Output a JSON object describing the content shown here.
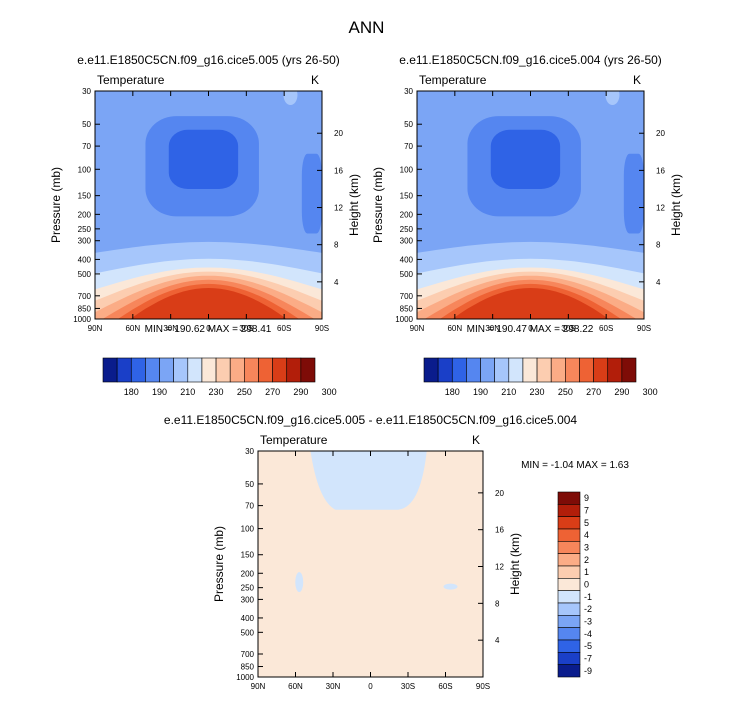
{
  "page_title": "ANN",
  "chart_data": [
    {
      "type": "heatmap",
      "title": "e.e11.E1850C5CN.f09_g16.cice5.005 (yrs 26-50)",
      "variable_label": "Temperature",
      "units": "K",
      "ylabel": "Pressure (mb)",
      "ylabel_right": "Height (km)",
      "x_ticks": [
        "90N",
        "60N",
        "30N",
        "0",
        "30S",
        "60S",
        "90S"
      ],
      "y_ticks": [
        "30",
        "50",
        "70",
        "100",
        "150",
        "200",
        "250",
        "300",
        "400",
        "500",
        "700",
        "850",
        "1000"
      ],
      "y_ticks_right": [
        "20",
        "16",
        "12",
        "8",
        "4"
      ],
      "stats": "MIN = 190.62  MAX = 298.41",
      "colorbar_labels": [
        "180",
        "190",
        "210",
        "230",
        "250",
        "270",
        "290",
        "300"
      ],
      "colorbar_colors": [
        "#0a1c8c",
        "#1a3fc8",
        "#2f63e6",
        "#5586f0",
        "#7ba5f5",
        "#a6c6fb",
        "#d2e5fc",
        "#fbe8d8",
        "#fccdb0",
        "#fbac86",
        "#f7865b",
        "#ee6234",
        "#d93d17",
        "#b21e0a",
        "#7e0c07"
      ],
      "levels": [
        {
          "ztop": 0.0,
          "dz": 0.0,
          "color": "#7ba5f5"
        },
        {
          "ztop": 0.68,
          "dz": 0.03,
          "color": "#a6c6fb"
        },
        {
          "ztop": 0.76,
          "dz": 0.04,
          "color": "#d2e5fc"
        },
        {
          "ztop": 0.81,
          "dz": 0.06,
          "color": "#fbe8d8"
        },
        {
          "ztop": 0.84,
          "dz": 0.08,
          "color": "#fccdb0"
        },
        {
          "ztop": 0.87,
          "dz": 0.1,
          "color": "#fbac86"
        },
        {
          "ztop": 0.9,
          "dz": 0.12,
          "color": "#f7865b"
        },
        {
          "ztop": 0.93,
          "dz": 0.14,
          "color": "#ee6234"
        },
        {
          "ztop": 0.96,
          "dz": 0.16,
          "color": "#d93d17"
        }
      ],
      "upper_blobs": [
        {
          "color": "#5586f0",
          "lat": 5,
          "z": 0.33,
          "wlat": 90,
          "hz": 0.44
        },
        {
          "color": "#2f63e6",
          "lat": 4,
          "z": 0.3,
          "wlat": 55,
          "hz": 0.26
        },
        {
          "color": "#5586f0",
          "lat": -82,
          "z": 0.45,
          "wlat": 16,
          "hz": 0.35
        }
      ]
    },
    {
      "type": "heatmap",
      "title": "e.e11.E1850C5CN.f09_g16.cice5.004 (yrs 26-50)",
      "variable_label": "Temperature",
      "units": "K",
      "ylabel": "Pressure (mb)",
      "ylabel_right": "Height (km)",
      "x_ticks": [
        "90N",
        "60N",
        "30N",
        "0",
        "30S",
        "60S",
        "90S"
      ],
      "y_ticks": [
        "30",
        "50",
        "70",
        "100",
        "150",
        "200",
        "250",
        "300",
        "400",
        "500",
        "700",
        "850",
        "1000"
      ],
      "y_ticks_right": [
        "20",
        "16",
        "12",
        "8",
        "4"
      ],
      "stats": "MIN = 190.47  MAX = 298.22",
      "colorbar_labels": [
        "180",
        "190",
        "210",
        "230",
        "250",
        "270",
        "290",
        "300"
      ],
      "colorbar_colors": [
        "#0a1c8c",
        "#1a3fc8",
        "#2f63e6",
        "#5586f0",
        "#7ba5f5",
        "#a6c6fb",
        "#d2e5fc",
        "#fbe8d8",
        "#fccdb0",
        "#fbac86",
        "#f7865b",
        "#ee6234",
        "#d93d17",
        "#b21e0a",
        "#7e0c07"
      ],
      "levels": [
        {
          "ztop": 0.0,
          "dz": 0.0,
          "color": "#7ba5f5"
        },
        {
          "ztop": 0.68,
          "dz": 0.03,
          "color": "#a6c6fb"
        },
        {
          "ztop": 0.76,
          "dz": 0.04,
          "color": "#d2e5fc"
        },
        {
          "ztop": 0.81,
          "dz": 0.06,
          "color": "#fbe8d8"
        },
        {
          "ztop": 0.84,
          "dz": 0.08,
          "color": "#fccdb0"
        },
        {
          "ztop": 0.87,
          "dz": 0.1,
          "color": "#fbac86"
        },
        {
          "ztop": 0.9,
          "dz": 0.12,
          "color": "#f7865b"
        },
        {
          "ztop": 0.93,
          "dz": 0.14,
          "color": "#ee6234"
        },
        {
          "ztop": 0.96,
          "dz": 0.16,
          "color": "#d93d17"
        }
      ],
      "upper_blobs": [
        {
          "color": "#5586f0",
          "lat": 5,
          "z": 0.33,
          "wlat": 90,
          "hz": 0.44
        },
        {
          "color": "#2f63e6",
          "lat": 4,
          "z": 0.3,
          "wlat": 55,
          "hz": 0.26
        },
        {
          "color": "#5586f0",
          "lat": -82,
          "z": 0.45,
          "wlat": 16,
          "hz": 0.35
        }
      ]
    },
    {
      "type": "heatmap",
      "title": "e.e11.E1850C5CN.f09_g16.cice5.005 - e.e11.E1850C5CN.f09_g16.cice5.004",
      "variable_label": "Temperature",
      "units": "K",
      "ylabel": "Pressure (mb)",
      "ylabel_right": "Height (km)",
      "x_ticks": [
        "90N",
        "60N",
        "30N",
        "0",
        "30S",
        "60S",
        "90S"
      ],
      "y_ticks": [
        "30",
        "50",
        "70",
        "100",
        "150",
        "200",
        "250",
        "300",
        "400",
        "500",
        "700",
        "850",
        "1000"
      ],
      "y_ticks_right": [
        "20",
        "16",
        "12",
        "8",
        "4"
      ],
      "stats": "MIN =  -1.04  MAX =  1.63",
      "colorbar_labels": [
        "9",
        "7",
        "5",
        "4",
        "3",
        "2",
        "1",
        "0",
        "-1",
        "-2",
        "-3",
        "-4",
        "-5",
        "-7",
        "-9"
      ],
      "colorbar_colors": [
        "#7e0c07",
        "#b21e0a",
        "#d93d17",
        "#ee6234",
        "#f7865b",
        "#fbac86",
        "#fccdb0",
        "#fbe8d8",
        "#d2e5fc",
        "#a6c6fb",
        "#7ba5f5",
        "#5586f0",
        "#2f63e6",
        "#1a3fc8",
        "#0a1c8c"
      ],
      "background_color": "#fbe8d8",
      "negative_color": "#d2e5fc"
    }
  ]
}
